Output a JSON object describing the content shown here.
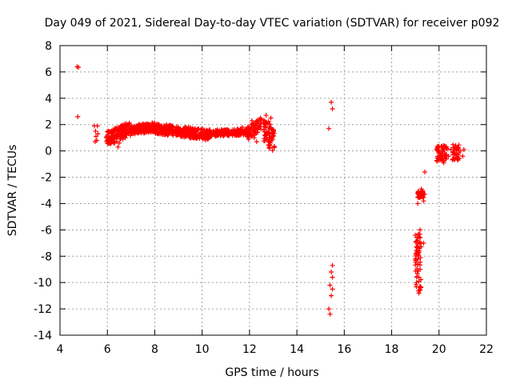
{
  "chart_data": {
    "type": "scatter",
    "title": "Day 049 of 2021, Sidereal Day-to-day VTEC variation (SDTVAR) for receiver p092",
    "xlabel": "GPS time / hours",
    "ylabel": "SDTVAR / TECUs",
    "xlim": [
      4,
      22
    ],
    "ylim": [
      -14,
      8
    ],
    "xticks": [
      "4",
      "6",
      "8",
      "10",
      "12",
      "14",
      "16",
      "18",
      "20",
      "22"
    ],
    "yticks": [
      "8",
      "6",
      "4",
      "2",
      "0",
      "-2",
      "-4",
      "-6",
      "-8",
      "-10",
      "-12",
      "-14"
    ],
    "grid": true,
    "marker": "+",
    "color": "#ff0000",
    "series": [
      {
        "name": "SDTVAR",
        "points": [
          [
            4.72,
            6.4
          ],
          [
            4.78,
            6.35
          ],
          [
            4.75,
            2.6
          ],
          [
            5.45,
            1.9
          ],
          [
            5.5,
            1.5
          ],
          [
            5.52,
            1.1
          ],
          [
            5.48,
            0.7
          ],
          [
            5.55,
            0.8
          ],
          [
            5.6,
            1.3
          ],
          [
            5.58,
            1.9
          ],
          [
            6.0,
            1.2
          ],
          [
            6.1,
            0.9
          ],
          [
            6.2,
            1.4
          ],
          [
            6.3,
            1.0
          ],
          [
            6.4,
            1.6
          ],
          [
            6.5,
            0.6
          ],
          [
            6.45,
            0.3
          ],
          [
            6.6,
            1.8
          ],
          [
            6.7,
            1.5
          ],
          [
            6.8,
            2.0
          ],
          [
            6.9,
            1.3
          ],
          [
            7.0,
            1.6
          ],
          [
            7.5,
            1.9
          ],
          [
            7.7,
            1.6
          ],
          [
            7.9,
            1.8
          ],
          [
            8.1,
            1.5
          ],
          [
            8.3,
            1.9
          ],
          [
            8.5,
            1.3
          ],
          [
            8.7,
            1.6
          ],
          [
            8.9,
            1.2
          ],
          [
            9.1,
            1.5
          ],
          [
            9.3,
            1.1
          ],
          [
            9.5,
            1.4
          ],
          [
            9.7,
            1.0
          ],
          [
            9.9,
            1.3
          ],
          [
            10.1,
            1.5
          ],
          [
            10.3,
            1.6
          ],
          [
            10.5,
            1.3
          ],
          [
            10.7,
            1.4
          ],
          [
            10.9,
            1.3
          ],
          [
            11.1,
            1.4
          ],
          [
            11.3,
            1.6
          ],
          [
            11.5,
            1.2
          ],
          [
            11.7,
            1.8
          ],
          [
            11.9,
            1.5
          ],
          [
            12.1,
            2.3
          ],
          [
            12.2,
            1.0
          ],
          [
            12.3,
            0.7
          ],
          [
            12.4,
            1.9
          ],
          [
            12.6,
            2.1
          ],
          [
            12.7,
            2.7
          ],
          [
            12.8,
            1.4
          ],
          [
            12.85,
            0.4
          ],
          [
            12.9,
            2.5
          ],
          [
            13.0,
            1.5
          ],
          [
            13.05,
            0.3
          ],
          [
            15.35,
            1.7
          ],
          [
            15.45,
            3.7
          ],
          [
            15.5,
            3.2
          ],
          [
            15.5,
            -8.7
          ],
          [
            15.45,
            -9.2
          ],
          [
            15.5,
            -9.6
          ],
          [
            15.4,
            -10.2
          ],
          [
            15.5,
            -10.5
          ],
          [
            15.45,
            -11.0
          ],
          [
            15.35,
            -12.0
          ],
          [
            15.4,
            -12.4
          ],
          [
            19.0,
            -6.4
          ],
          [
            19.1,
            -6.8
          ],
          [
            19.05,
            -7.3
          ],
          [
            19.15,
            -7.7
          ],
          [
            19.0,
            -8.2
          ],
          [
            19.1,
            -8.6
          ],
          [
            19.2,
            -9.0
          ],
          [
            19.15,
            -9.6
          ],
          [
            19.05,
            -10.0
          ],
          [
            19.2,
            -10.4
          ],
          [
            19.15,
            -10.8
          ],
          [
            19.2,
            -6.0
          ],
          [
            19.35,
            -7.0
          ],
          [
            19.1,
            -3.2
          ],
          [
            19.2,
            -3.5
          ],
          [
            19.3,
            -3.1
          ],
          [
            19.4,
            -3.3
          ],
          [
            19.25,
            -2.9
          ],
          [
            19.1,
            -4.0
          ],
          [
            19.35,
            -3.8
          ],
          [
            19.4,
            -1.6
          ],
          [
            20.0,
            0.3
          ],
          [
            20.05,
            -0.2
          ],
          [
            20.1,
            -0.6
          ],
          [
            20.15,
            0.1
          ],
          [
            20.2,
            -0.9
          ],
          [
            20.3,
            0.2
          ],
          [
            20.4,
            -0.4
          ],
          [
            20.5,
            0.1
          ],
          [
            20.6,
            -0.3
          ],
          [
            20.7,
            0.4
          ],
          [
            20.8,
            -0.7
          ],
          [
            20.9,
            0.0
          ],
          [
            21.0,
            -0.4
          ],
          [
            21.05,
            0.1
          ]
        ]
      }
    ],
    "dense_segments": [
      {
        "x": [
          5.95,
          7.0
        ],
        "y_center": [
          0.9,
          1.7
        ],
        "spread": 0.55,
        "count": 160
      },
      {
        "x": [
          7.0,
          8.0
        ],
        "y_center": [
          1.6,
          1.8
        ],
        "spread": 0.35,
        "count": 150
      },
      {
        "x": [
          8.0,
          10.4
        ],
        "y_center": [
          1.7,
          1.2
        ],
        "spread": 0.4,
        "count": 360
      },
      {
        "x": [
          10.4,
          11.9
        ],
        "y_center": [
          1.35,
          1.45
        ],
        "spread": 0.25,
        "count": 160
      },
      {
        "x": [
          11.9,
          12.5
        ],
        "y_center": [
          1.3,
          2.1
        ],
        "spread": 0.5,
        "count": 70
      },
      {
        "x": [
          12.6,
          13.05
        ],
        "y_center": [
          1.6,
          0.8
        ],
        "spread": 1.0,
        "count": 70
      },
      {
        "x": [
          19.1,
          19.35
        ],
        "y_center": [
          -3.3,
          -3.3
        ],
        "spread": 0.3,
        "count": 35
      },
      {
        "x": [
          19.0,
          19.25
        ],
        "y_center": [
          -8.5,
          -8.5
        ],
        "spread": 2.2,
        "count": 55
      },
      {
        "x": [
          19.9,
          20.35
        ],
        "y_center": [
          -0.2,
          -0.2
        ],
        "spread": 0.6,
        "count": 55
      },
      {
        "x": [
          20.55,
          20.85
        ],
        "y_center": [
          -0.1,
          -0.1
        ],
        "spread": 0.6,
        "count": 35
      }
    ]
  }
}
